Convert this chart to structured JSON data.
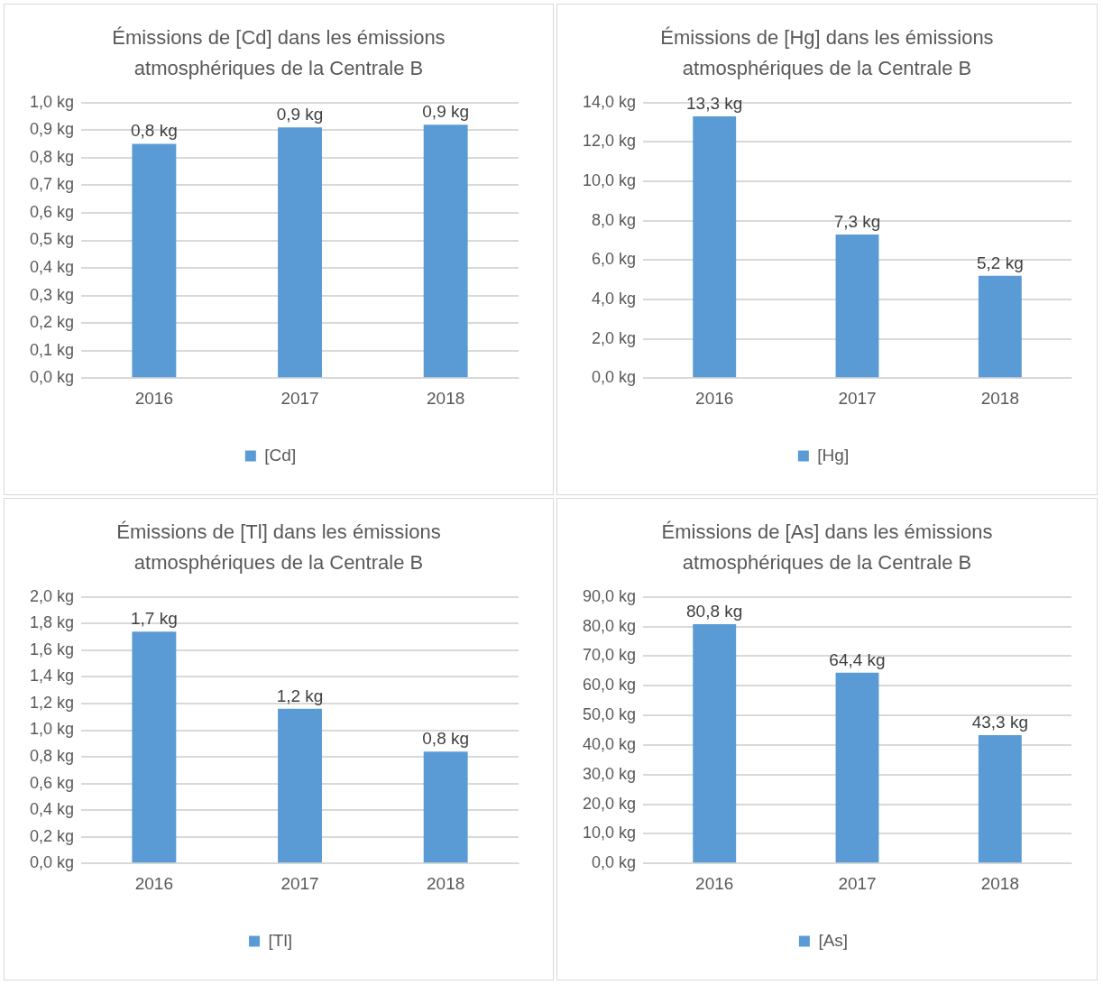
{
  "chart_data": [
    {
      "type": "bar",
      "title": "Émissions de [Cd] dans les émissions atmosphériques de la Centrale B",
      "categories": [
        "2016",
        "2017",
        "2018"
      ],
      "series": [
        {
          "name": "[Cd]",
          "color": "#5b9bd5",
          "values": [
            0.85,
            0.91,
            0.92
          ],
          "value_labels": [
            "0,8 kg",
            "0,9 kg",
            "0,9 kg"
          ]
        }
      ],
      "ylim": [
        0,
        1
      ],
      "yticks": [
        {
          "value": 0,
          "label": "0,0 kg"
        },
        {
          "value": 0.1,
          "label": "0,1 kg"
        },
        {
          "value": 0.2,
          "label": "0,2 kg"
        },
        {
          "value": 0.3,
          "label": "0,3 kg"
        },
        {
          "value": 0.4,
          "label": "0,4 kg"
        },
        {
          "value": 0.5,
          "label": "0,5 kg"
        },
        {
          "value": 0.6,
          "label": "0,6 kg"
        },
        {
          "value": 0.7,
          "label": "0,7 kg"
        },
        {
          "value": 0.8,
          "label": "0,8 kg"
        },
        {
          "value": 0.9,
          "label": "0,9 kg"
        },
        {
          "value": 1,
          "label": "1,0 kg"
        }
      ],
      "grid": "y",
      "legend": "bottom"
    },
    {
      "type": "bar",
      "title": "Émissions de [Hg] dans les émissions atmosphériques de la Centrale B",
      "categories": [
        "2016",
        "2017",
        "2018"
      ],
      "series": [
        {
          "name": "[Hg]",
          "color": "#5b9bd5",
          "values": [
            13.3,
            7.3,
            5.2
          ],
          "value_labels": [
            "13,3 kg",
            "7,3 kg",
            "5,2 kg"
          ]
        }
      ],
      "ylim": [
        0,
        14
      ],
      "yticks": [
        {
          "value": 0,
          "label": "0,0 kg"
        },
        {
          "value": 2,
          "label": "2,0 kg"
        },
        {
          "value": 4,
          "label": "4,0 kg"
        },
        {
          "value": 6,
          "label": "6,0 kg"
        },
        {
          "value": 8,
          "label": "8,0 kg"
        },
        {
          "value": 10,
          "label": "10,0 kg"
        },
        {
          "value": 12,
          "label": "12,0 kg"
        },
        {
          "value": 14,
          "label": "14,0 kg"
        }
      ],
      "grid": "y",
      "legend": "bottom"
    },
    {
      "type": "bar",
      "title": "Émissions de [Tl] dans les émissions atmosphériques de la Centrale B",
      "categories": [
        "2016",
        "2017",
        "2018"
      ],
      "series": [
        {
          "name": "[Tl]",
          "color": "#5b9bd5",
          "values": [
            1.74,
            1.16,
            0.84
          ],
          "value_labels": [
            "1,7 kg",
            "1,2 kg",
            "0,8 kg"
          ]
        }
      ],
      "ylim": [
        0,
        2
      ],
      "yticks": [
        {
          "value": 0,
          "label": "0,0 kg"
        },
        {
          "value": 0.2,
          "label": "0,2 kg"
        },
        {
          "value": 0.4,
          "label": "0,4 kg"
        },
        {
          "value": 0.6,
          "label": "0,6 kg"
        },
        {
          "value": 0.8,
          "label": "0,8 kg"
        },
        {
          "value": 1,
          "label": "1,0 kg"
        },
        {
          "value": 1.2,
          "label": "1,2 kg"
        },
        {
          "value": 1.4,
          "label": "1,4 kg"
        },
        {
          "value": 1.6,
          "label": "1,6 kg"
        },
        {
          "value": 1.8,
          "label": "1,8 kg"
        },
        {
          "value": 2,
          "label": "2,0 kg"
        }
      ],
      "grid": "y",
      "legend": "bottom"
    },
    {
      "type": "bar",
      "title": "Émissions de [As] dans les émissions atmosphériques de la Centrale B",
      "categories": [
        "2016",
        "2017",
        "2018"
      ],
      "series": [
        {
          "name": "[As]",
          "color": "#5b9bd5",
          "values": [
            80.8,
            64.4,
            43.3
          ],
          "value_labels": [
            "80,8 kg",
            "64,4 kg",
            "43,3 kg"
          ]
        }
      ],
      "ylim": [
        0,
        90
      ],
      "yticks": [
        {
          "value": 0,
          "label": "0,0 kg"
        },
        {
          "value": 10,
          "label": "10,0 kg"
        },
        {
          "value": 20,
          "label": "20,0 kg"
        },
        {
          "value": 30,
          "label": "30,0 kg"
        },
        {
          "value": 40,
          "label": "40,0 kg"
        },
        {
          "value": 50,
          "label": "50,0 kg"
        },
        {
          "value": 60,
          "label": "60,0 kg"
        },
        {
          "value": 70,
          "label": "70,0 kg"
        },
        {
          "value": 80,
          "label": "80,0 kg"
        },
        {
          "value": 90,
          "label": "90,0 kg"
        }
      ],
      "grid": "y",
      "legend": "bottom"
    }
  ]
}
